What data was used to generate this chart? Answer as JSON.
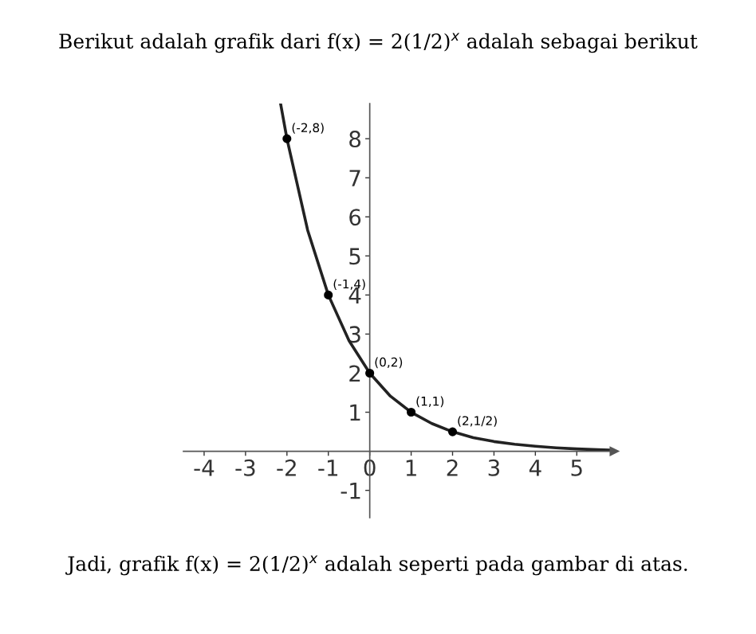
{
  "chart_data": {
    "type": "line",
    "title": "Berikut adalah grafik dari f(x) = 2(1/2)$^{x}$ adalah sebagai berikut",
    "xlim": [
      -4.5,
      5.9
    ],
    "ylim": [
      -1.7,
      8.9
    ],
    "xticks": [
      -4,
      -3,
      -2,
      -1,
      0,
      1,
      2,
      3,
      4,
      5
    ],
    "yticks": [
      -1,
      1,
      2,
      3,
      4,
      5,
      6,
      7,
      8
    ],
    "grid": false,
    "legend": false,
    "series": [
      {
        "color": "#222222",
        "marker": "none",
        "x": [
          -2.15,
          -2,
          -1.5,
          -1,
          -0.5,
          0,
          0.5,
          1,
          1.5,
          2,
          2.5,
          3,
          3.5,
          4,
          4.5,
          5,
          5.5,
          5.9
        ],
        "values": [
          8.88,
          8,
          5.66,
          4,
          2.83,
          2,
          1.41,
          1,
          0.71,
          0.5,
          0.35,
          0.25,
          0.18,
          0.13,
          0.09,
          0.06,
          0.04,
          0.03
        ]
      },
      {
        "type": "scatter",
        "color": "#000000",
        "marker": "circle",
        "x": [
          -2,
          -1,
          0,
          1,
          2
        ],
        "values": [
          8,
          4,
          2,
          1,
          0.5
        ]
      }
    ],
    "annotations": [
      {
        "text": "(-2,8)",
        "x": -2,
        "y": 8
      },
      {
        "text": "(-1,4)",
        "x": -1,
        "y": 4
      },
      {
        "text": "(0,2)",
        "x": 0,
        "y": 2
      },
      {
        "text": "(1,1)",
        "x": 1,
        "y": 1
      },
      {
        "text": "(2,1/2)",
        "x": 2,
        "y": 0.5
      },
      "Jadi, grafik f(x) = 2(1/2)$^{x}$ adalah seperti pada gambar di atas."
    ]
  }
}
